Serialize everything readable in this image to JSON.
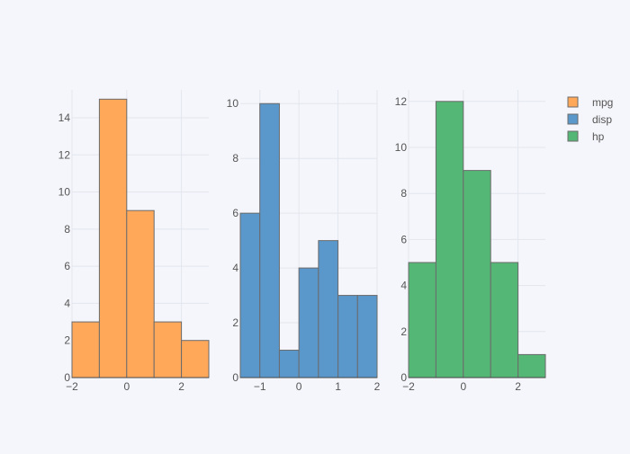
{
  "chart_data": [
    {
      "type": "bar",
      "series_name": "mpg",
      "color": "#ffa85a",
      "bin_width": 1,
      "bin_edges": [
        -2,
        -1,
        0,
        1,
        2,
        3
      ],
      "values": [
        3,
        15,
        9,
        3,
        2
      ],
      "xlim": [
        -2,
        3
      ],
      "ylim": [
        0,
        15.5
      ],
      "xticks": [
        -2,
        0,
        2
      ],
      "xtick_labels": [
        "−2",
        "0",
        "2"
      ],
      "yticks": [
        0,
        2,
        4,
        6,
        8,
        10,
        12,
        14
      ],
      "ytick_labels": [
        "0",
        "2",
        "4",
        "6",
        "8",
        "10",
        "12",
        "14"
      ],
      "grid": true
    },
    {
      "type": "bar",
      "series_name": "disp",
      "color": "#5a97cb",
      "bin_width": 0.5,
      "bin_edges": [
        -1.5,
        -1,
        -0.5,
        0,
        0.5,
        1,
        1.5,
        2
      ],
      "values": [
        6,
        10,
        1,
        4,
        5,
        3,
        3
      ],
      "xlim": [
        -1.5,
        2
      ],
      "ylim": [
        0,
        10.5
      ],
      "xticks": [
        -1,
        0,
        1,
        2
      ],
      "xtick_labels": [
        "−1",
        "0",
        "1",
        "2"
      ],
      "yticks": [
        0,
        2,
        4,
        6,
        8,
        10
      ],
      "ytick_labels": [
        "0",
        "2",
        "4",
        "6",
        "8",
        "10"
      ],
      "grid": true
    },
    {
      "type": "bar",
      "series_name": "hp",
      "color": "#55b776",
      "bin_width": 1,
      "bin_edges": [
        -2,
        -1,
        0,
        1,
        2,
        3
      ],
      "values": [
        5,
        12,
        9,
        5,
        1
      ],
      "xlim": [
        -2,
        3
      ],
      "ylim": [
        0,
        12.5
      ],
      "xticks": [
        -2,
        0,
        2
      ],
      "xtick_labels": [
        "−2",
        "0",
        "2"
      ],
      "yticks": [
        0,
        2,
        4,
        6,
        8,
        10,
        12
      ],
      "ytick_labels": [
        "0",
        "2",
        "4",
        "6",
        "8",
        "10",
        "12"
      ],
      "grid": true
    }
  ],
  "legend": {
    "placement": "top-right",
    "items": [
      {
        "label": "mpg",
        "color": "#ffa85a"
      },
      {
        "label": "disp",
        "color": "#5a97cb"
      },
      {
        "label": "hp",
        "color": "#55b776"
      }
    ]
  },
  "colors": {
    "background": "#f5f6fb",
    "grid": "#e3e6ee",
    "bar_outline": "#6b6b6b",
    "axis_text": "#555555"
  }
}
